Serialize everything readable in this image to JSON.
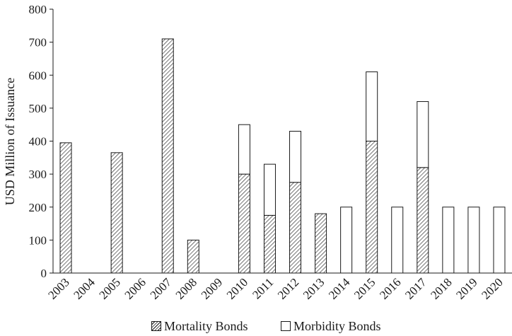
{
  "chart_data": {
    "type": "bar",
    "stacked": true,
    "categories": [
      "2003",
      "2004",
      "2005",
      "2006",
      "2007",
      "2008",
      "2009",
      "2010",
      "2011",
      "2012",
      "2013",
      "2014",
      "2015",
      "2016",
      "2017",
      "2018",
      "2019",
      "2020"
    ],
    "series": [
      {
        "name": "Mortality Bonds",
        "pattern": "hatched",
        "values": [
          395,
          0,
          365,
          0,
          710,
          100,
          0,
          300,
          175,
          275,
          180,
          0,
          400,
          0,
          320,
          0,
          0,
          0
        ]
      },
      {
        "name": "Morbidity Bonds",
        "pattern": "plain",
        "values": [
          0,
          0,
          0,
          0,
          0,
          0,
          0,
          150,
          155,
          155,
          0,
          200,
          210,
          200,
          200,
          200,
          200,
          200
        ]
      }
    ],
    "ylabel": "USD Million of Issuance",
    "xlabel": "",
    "ylim": [
      0,
      800
    ],
    "yticks": [
      0,
      100,
      200,
      300,
      400,
      500,
      600,
      700,
      800
    ],
    "legend_position": "bottom",
    "grid": false,
    "colors": {
      "stroke": "#1a1a1a",
      "fill": "#ffffff"
    }
  }
}
